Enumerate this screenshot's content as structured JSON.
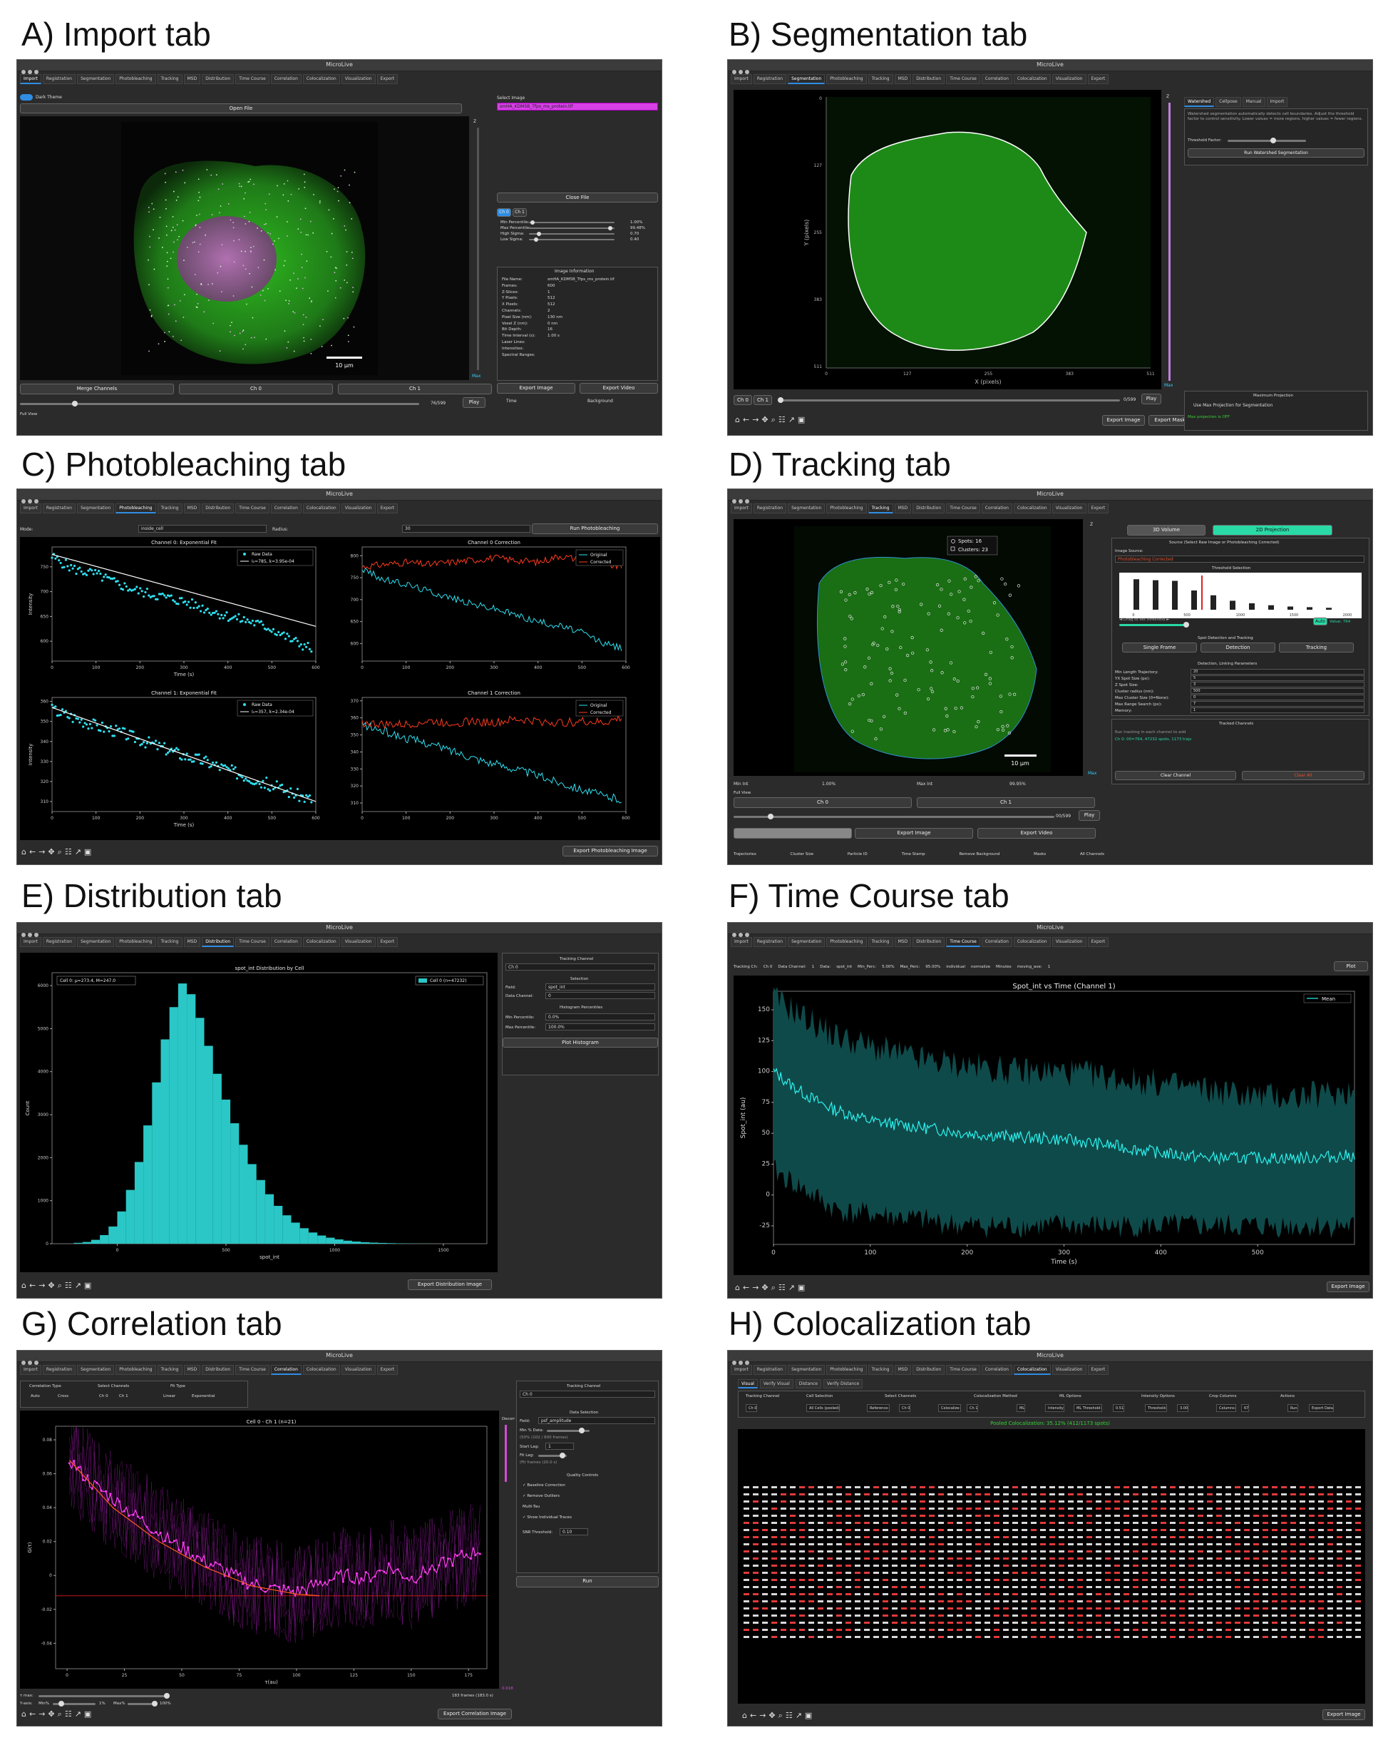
{
  "app_title": "MicroLive",
  "tabs": [
    "Import",
    "Registration",
    "Segmentation",
    "Photobleaching",
    "Tracking",
    "MSD",
    "Distribution",
    "Time Course",
    "Correlation",
    "Colocalization",
    "Visualization",
    "Export"
  ],
  "toolbar_icons": [
    "home-icon",
    "back-icon",
    "forward-icon",
    "pan-icon",
    "zoom-icon",
    "configure-icon",
    "edit-axis-icon",
    "save-icon"
  ],
  "panels": {
    "a": {
      "label": "A) Import tab",
      "dark_theme": "Dark Theme",
      "open_file": "Open File",
      "select_image": "Select Image",
      "file_selected": "smHA_KDM5B_Tfps_ms_protein.tif",
      "close_file": "Close File",
      "ch_tabs": [
        "Ch 0",
        "Ch 1"
      ],
      "sliders": [
        {
          "label": "Min Percentile:",
          "value": "1.00%",
          "level": 0.02
        },
        {
          "label": "Max Percentile:",
          "value": "99.48%",
          "level": 0.99
        },
        {
          "label": "High Sigma:",
          "value": "0.70",
          "level": 0.1
        },
        {
          "label": "Low Sigma:",
          "value": "0.40",
          "level": 0.06
        }
      ],
      "info_title": "Image Information",
      "info": [
        [
          "File Name:",
          "smHA_KDM5B_Tfps_ms_protein.tif"
        ],
        [
          "Frames:",
          "600"
        ],
        [
          "Z-Slices:",
          "1"
        ],
        [
          "Y Pixels:",
          "512"
        ],
        [
          "X Pixels:",
          "512"
        ],
        [
          "Channels:",
          "2"
        ],
        [
          "Pixel Size (nm):",
          "130 nm"
        ],
        [
          "Voxel Z (nm):",
          "0 nm"
        ],
        [
          "Bit Depth:",
          "16"
        ],
        [
          "Time Interval (s):",
          "1.00 s"
        ],
        [
          "Laser Lines:",
          ""
        ],
        [
          "Intensities:",
          ""
        ],
        [
          "Spectral Ranges:",
          ""
        ]
      ],
      "scale": "10 µm",
      "z_label": "Z",
      "max_label": "Max",
      "bottom_buttons": [
        "Merge Channels",
        "Ch 0",
        "Ch 1"
      ],
      "frame": "76/599",
      "play": "Play",
      "export_image": "Export Image",
      "export_video": "Export Video",
      "time": "Time",
      "background": "Background",
      "full_view": "Full View",
      "time_progress": 0.13
    },
    "b": {
      "label": "B) Segmentation tab",
      "seg_tabs": [
        "Watershed",
        "Cellpose",
        "Manual",
        "Import"
      ],
      "description": "Watershed segmentation automatically detects cell boundaries. Adjust the threshold factor to control sensitivity. Lower values = more regions, higher values = fewer regions.",
      "threshold_factor": "Threshold Factor:",
      "run": "Run Watershed Segmentation",
      "y_axis": "Y (pixels)",
      "x_axis": "X (pixels)",
      "y_ticks": [
        "0",
        "127",
        "255",
        "383",
        "511"
      ],
      "x_ticks": [
        "0",
        "127",
        "255",
        "383",
        "511"
      ],
      "z_label": "Z",
      "max_label": "Max",
      "ch_buttons": [
        "Ch 0",
        "Ch 1"
      ],
      "frame": "0/599",
      "play": "Play",
      "export_image": "Export Image",
      "export_mask": "Export Mask",
      "max_projection": "Maximum Projection",
      "use_max": "Use Max Projection for Segmentation",
      "max_off": "Max projection is OFF"
    },
    "c": {
      "label": "C) Photobleaching tab",
      "mode": "Mode:",
      "mode_value": "inside_cell",
      "radius": "Radius:",
      "radius_value": "30",
      "run": "Run Photobleaching",
      "export": "Export Photobleaching Image"
    },
    "d": {
      "label": "D) Tracking tab",
      "view_3d": "3D Volume",
      "projection": "2D Projection",
      "source": "Source (Select Raw Image or Photobleaching Corrected)",
      "image_source": "Image Source:",
      "source_value": "Photobleaching Corrected",
      "threshold_selection": "Threshold Selection",
      "drag": "◄ Drag to set threshold ►",
      "auto": "Auto",
      "value": "Value: 764",
      "spot_title": "Spot Detection and Tracking",
      "spot_buttons": [
        "Single Frame",
        "Detection",
        "Tracking"
      ],
      "params_title": "Detection, Linking Parameters",
      "params": [
        [
          "Min Length Trajectory:",
          "20"
        ],
        [
          "YX Spot Size (px):",
          "5"
        ],
        [
          "Z Spot Size:",
          "3"
        ],
        [
          "Cluster radius (nm):",
          "500"
        ],
        [
          "Max Cluster Size (0=None):",
          "0"
        ],
        [
          "Max Range Search (px):",
          "7"
        ],
        [
          "Memory:",
          "1"
        ]
      ],
      "tracked": "Tracked Channels",
      "tracked_hint": "Run tracking in each channel to add",
      "tracked_item": "Ch 0: 00=764, 47232 spots, 1173 trajs",
      "clear_channel": "Clear Channel",
      "clear_all": "Clear All",
      "legend_spots": "Spots: 16",
      "legend_clusters": "Clusters: 23",
      "scale": "10 µm",
      "max_label": "Max",
      "z_label": "Z",
      "min_int": "Min Int",
      "min_int_val": "1.00%",
      "max_int": "Max Int",
      "max_int_val": "99.95%",
      "full_view": "Full View",
      "ch_buttons": [
        "Ch 0",
        "Ch 1"
      ],
      "frame": "00/599",
      "play": "Play",
      "export_image": "Export Image",
      "export_video": "Export Video",
      "checks": [
        "Trajectories",
        "Cluster Size",
        "Particle ID",
        "Time Stamp",
        "Remove Background",
        "Masks",
        "All Channels"
      ],
      "histogram": {
        "x_ticks": [
          "0",
          "500",
          "1000",
          "1500",
          "2000"
        ],
        "bars": [
          0.95,
          0.92,
          0.9,
          0.6,
          0.45,
          0.28,
          0.2,
          0.14,
          0.1,
          0.08,
          0.06
        ],
        "threshold_pos": 0.32
      }
    },
    "e": {
      "label": "E) Distribution tab",
      "tracking_channel": "Tracking Channel",
      "channel_value": "Ch 0",
      "selection": "Selection",
      "field": "Field:",
      "field_value": "spot_int",
      "data_channel": "Data Channel:",
      "data_channel_value": "0",
      "hist_pct": "Histogram Percentiles",
      "min_pct": "Min Percentile:",
      "min_pct_value": "0.0%",
      "max_pct": "Max Percentile:",
      "max_pct_value": "100.0%",
      "plot": "Plot Histogram",
      "export": "Export Distribution Image"
    },
    "f": {
      "label": "F) Time Course tab",
      "controls": [
        "Tracking Ch:",
        "Ch 0",
        "Data Channel:",
        "1",
        "Data:",
        "spot_int",
        "Min_Perc:",
        "5.00%",
        "Max_Perc:",
        "95.00%",
        "individual",
        "normalize",
        "Minutes",
        "moving_ave:",
        "1"
      ],
      "plot": "Plot",
      "export": "Export Image"
    },
    "g": {
      "label": "G) Correlation tab",
      "corr_type": "Correlation Type",
      "corr_options": [
        "Auto",
        "Cross"
      ],
      "select_channels": "Select Channels",
      "channel_options": [
        "Ch 0",
        "Ch 1"
      ],
      "fit_type": "Fit Type",
      "fit_options": [
        "Linear",
        "Exponential"
      ],
      "tracking_channel": "Tracking Channel",
      "channel_value": "Ch 0",
      "data_selection": "Data Selection",
      "field": "Field:",
      "field_value": "psf_amplitude",
      "min_data": "Min % Data:",
      "min_data_note": "(50% (102 / 600 frames)",
      "start_lag": "Start Lag:",
      "start_lag_value": "1",
      "fit_lag": "Fit Lag:",
      "fit_lag_note": "(Fit frames (20.0 s)",
      "quality": "Quality Controls",
      "options": [
        "Baseline Correction",
        "Remove Outliers",
        "Multi-Tau",
        "Show Individual Traces"
      ],
      "options_checked": [
        true,
        true,
        false,
        true
      ],
      "snr": "SNR Threshold:",
      "snr_value": "0.10",
      "run": "Run",
      "decor": "Decorr",
      "max_lag": "τ max:",
      "frames": "183 frames (183.0 s)",
      "yaxis": "Y-axis:",
      "minpct": "Min%",
      "minval": "1%",
      "maxpct": "Max%",
      "maxval": "100%",
      "export": "Export Correlation Image",
      "g_value": "0.018"
    },
    "h": {
      "label": "H) Colocalization tab",
      "subtabs": [
        "Visual",
        "Verify Visual",
        "Distance",
        "Verify Distance"
      ],
      "columns": [
        "Tracking Channel",
        "Cell Selection",
        "Select Channels",
        "Colocalization Method",
        "ML Options",
        "Intensity Options",
        "Crop Columns",
        "Actions"
      ],
      "values": [
        "Ch 0",
        "All Cells (pooled)",
        "Reference:",
        "Ch 0",
        "Colocalize:",
        "Ch 1",
        "ML",
        "Intensity",
        "ML Threshold:",
        "0.51",
        "Threshold:",
        "3.00",
        "Columns:",
        "67",
        "Run",
        "Export Data"
      ],
      "result": "Pooled Colocalization: 35.12% (412/1173 spots)",
      "export": "Export Image"
    }
  },
  "chart_data": [
    {
      "type": "line",
      "panel": "C",
      "title": "Channel 0: Exponential Fit",
      "xlabel": "Time (s)",
      "ylabel": "Intensity",
      "xlim": [
        0,
        600
      ],
      "ylim": [
        560,
        790
      ],
      "x_ticks": [
        0,
        100,
        200,
        300,
        400,
        500,
        600
      ],
      "y_ticks": [
        600,
        650,
        700,
        750
      ],
      "series": [
        {
          "name": "Raw Data",
          "x": [
            0,
            50,
            100,
            150,
            200,
            250,
            300,
            350,
            400,
            450,
            500,
            550,
            590
          ],
          "values": [
            770,
            745,
            735,
            715,
            700,
            690,
            680,
            665,
            650,
            640,
            625,
            600,
            585
          ]
        },
        {
          "name": "I₀=785, k=3.95e-04",
          "x": [
            0,
            600
          ],
          "values": [
            775,
            630
          ]
        }
      ],
      "legend": "top-right"
    },
    {
      "type": "line",
      "panel": "C",
      "title": "Channel 0 Correction",
      "xlim": [
        0,
        600
      ],
      "ylim": [
        560,
        820
      ],
      "x_ticks": [
        0,
        100,
        200,
        300,
        400,
        500,
        600
      ],
      "y_ticks": [
        600,
        650,
        700,
        750,
        800
      ],
      "series": [
        {
          "name": "Original",
          "x": [
            0,
            50,
            100,
            150,
            200,
            250,
            300,
            350,
            400,
            450,
            500,
            550,
            590
          ],
          "values": [
            770,
            745,
            735,
            720,
            705,
            690,
            680,
            665,
            650,
            640,
            625,
            600,
            590
          ]
        },
        {
          "name": "Corrected",
          "x": [
            0,
            50,
            100,
            150,
            200,
            250,
            300,
            350,
            400,
            450,
            500,
            550,
            590
          ],
          "values": [
            775,
            780,
            785,
            780,
            785,
            790,
            795,
            790,
            785,
            800,
            790,
            780,
            775
          ]
        }
      ],
      "legend": "top-right"
    },
    {
      "type": "line",
      "panel": "C",
      "title": "Channel 1: Exponential Fit",
      "xlabel": "Time (s)",
      "ylabel": "Intensity",
      "xlim": [
        0,
        600
      ],
      "ylim": [
        305,
        362
      ],
      "x_ticks": [
        0,
        100,
        200,
        300,
        400,
        500,
        600
      ],
      "y_ticks": [
        310,
        320,
        330,
        340,
        350,
        360
      ],
      "series": [
        {
          "name": "Raw Data",
          "x": [
            0,
            50,
            100,
            150,
            200,
            250,
            300,
            350,
            400,
            450,
            500,
            550,
            590
          ],
          "values": [
            356,
            352,
            348,
            345,
            341,
            337,
            333,
            330,
            326,
            322,
            318,
            314,
            311
          ]
        },
        {
          "name": "I₀=357, k=2.34e-04",
          "x": [
            0,
            600
          ],
          "values": [
            357,
            310
          ]
        }
      ],
      "legend": "top-right"
    },
    {
      "type": "line",
      "panel": "C",
      "title": "Channel 1 Correction",
      "xlim": [
        0,
        600
      ],
      "ylim": [
        305,
        372
      ],
      "x_ticks": [
        0,
        100,
        200,
        300,
        400,
        500,
        600
      ],
      "y_ticks": [
        310,
        320,
        330,
        340,
        350,
        360,
        370
      ],
      "series": [
        {
          "name": "Original",
          "x": [
            0,
            50,
            100,
            150,
            200,
            250,
            300,
            350,
            400,
            450,
            500,
            550,
            590
          ],
          "values": [
            356,
            352,
            348,
            345,
            341,
            337,
            333,
            330,
            326,
            322,
            318,
            314,
            312
          ]
        },
        {
          "name": "Corrected",
          "x": [
            0,
            50,
            100,
            150,
            200,
            250,
            300,
            350,
            400,
            450,
            500,
            550,
            590
          ],
          "values": [
            357,
            356,
            356,
            358,
            357,
            358,
            357,
            359,
            358,
            357,
            358,
            357,
            360
          ]
        }
      ],
      "legend": "top-right"
    },
    {
      "type": "bar",
      "panel": "E",
      "title": "spot_int Distribution by Cell",
      "xlabel": "spot_int",
      "ylabel": "Count",
      "xlim": [
        -300,
        1700
      ],
      "ylim": [
        0,
        6300
      ],
      "x_ticks": [
        0,
        500,
        1000,
        1500
      ],
      "y_ticks": [
        0,
        1000,
        2000,
        3000,
        4000,
        5000,
        6000
      ],
      "stats": "Cell 0: μ=273.4, M=247.0",
      "legend": "Cell 0 (n=47232)",
      "bin_width": 40,
      "bin_start": -200,
      "values": [
        20,
        40,
        90,
        200,
        400,
        750,
        1250,
        1900,
        2750,
        3750,
        4750,
        5500,
        6050,
        5800,
        5250,
        4600,
        3950,
        3350,
        2800,
        2300,
        1850,
        1480,
        1150,
        880,
        660,
        490,
        360,
        260,
        190,
        140,
        100,
        70,
        50,
        35,
        25,
        18,
        12,
        8,
        5,
        3,
        2,
        1
      ]
    },
    {
      "type": "line",
      "panel": "F",
      "title": "Spot_int vs Time (Channel 1)",
      "xlabel": "Time (s)",
      "ylabel": "Spot_int (au)",
      "xlim": [
        0,
        600
      ],
      "ylim": [
        -40,
        165
      ],
      "x_ticks": [
        0,
        100,
        200,
        300,
        400,
        500
      ],
      "y_ticks": [
        -25,
        0,
        25,
        50,
        75,
        100,
        125,
        150
      ],
      "legend": "Mean",
      "series": [
        {
          "name": "Mean",
          "x": [
            0,
            20,
            40,
            60,
            80,
            100,
            150,
            200,
            250,
            300,
            350,
            400,
            450,
            500,
            550,
            600
          ],
          "values": [
            100,
            88,
            78,
            70,
            65,
            60,
            55,
            50,
            47,
            45,
            40,
            34,
            30,
            30,
            30,
            32
          ]
        }
      ],
      "band_upper": [
        160,
        150,
        140,
        130,
        125,
        120,
        110,
        105,
        100,
        100,
        95,
        90,
        85,
        80,
        80,
        85
      ],
      "band_lower": [
        20,
        10,
        0,
        -10,
        -15,
        -15,
        -20,
        -25,
        -25,
        -25,
        -25,
        -25,
        -25,
        -25,
        -25,
        -25
      ]
    },
    {
      "type": "line",
      "panel": "G",
      "title": "Cell 0 - Ch 1 (n=21)",
      "xlabel": "τ(au)",
      "ylabel": "G(τ)",
      "xlim": [
        -5,
        183
      ],
      "ylim": [
        -0.055,
        0.088
      ],
      "x_ticks": [
        0,
        25,
        50,
        75,
        100,
        125,
        150,
        175
      ],
      "y_ticks": [
        -0.04,
        -0.02,
        0.0,
        0.02,
        0.04,
        0.06,
        0.08
      ],
      "series": [
        {
          "name": "mean",
          "x": [
            1,
            10,
            20,
            30,
            40,
            50,
            60,
            70,
            80,
            90,
            100,
            110,
            120,
            130,
            140,
            150,
            160,
            170,
            180
          ],
          "values": [
            0.068,
            0.055,
            0.045,
            0.035,
            0.025,
            0.016,
            0.008,
            0.002,
            -0.005,
            -0.008,
            -0.01,
            -0.005,
            0.0,
            -0.002,
            0.005,
            -0.002,
            0.005,
            0.01,
            0.015
          ]
        },
        {
          "name": "fit",
          "x": [
            1,
            20,
            40,
            60,
            80,
            100,
            110
          ],
          "values": [
            0.068,
            0.04,
            0.02,
            0.005,
            -0.006,
            -0.011,
            -0.012
          ]
        }
      ],
      "baseline": -0.012
    }
  ]
}
